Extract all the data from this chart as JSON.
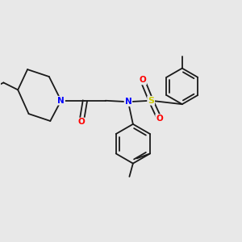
{
  "background_color": "#e8e8e8",
  "bond_color": "#1a1a1a",
  "atom_colors": {
    "N": "#0000ff",
    "O": "#ff0000",
    "S": "#cccc00",
    "C": "#1a1a1a"
  },
  "figsize": [
    3.0,
    3.0
  ],
  "dpi": 100,
  "xlim": [
    0,
    10
  ],
  "ylim": [
    0,
    10
  ]
}
